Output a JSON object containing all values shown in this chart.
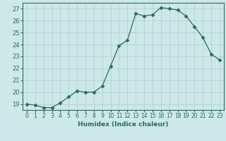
{
  "x": [
    0,
    1,
    2,
    3,
    4,
    5,
    6,
    7,
    8,
    9,
    10,
    11,
    12,
    13,
    14,
    15,
    16,
    17,
    18,
    19,
    20,
    21,
    22,
    23
  ],
  "y": [
    19.0,
    18.9,
    18.7,
    18.7,
    19.1,
    19.6,
    20.1,
    20.0,
    20.0,
    20.5,
    22.2,
    23.9,
    24.35,
    26.6,
    26.4,
    26.5,
    27.1,
    27.0,
    26.9,
    26.4,
    25.5,
    24.6,
    23.2,
    22.7
  ],
  "line_color": "#2a6b5e",
  "marker": "D",
  "marker_size": 2.5,
  "background_color": "#cde8e8",
  "grid_color": "#b0cccc",
  "xlabel": "Humidex (Indice chaleur)",
  "ylim": [
    18.5,
    27.5
  ],
  "xlim": [
    -0.5,
    23.5
  ],
  "yticks": [
    19,
    20,
    21,
    22,
    23,
    24,
    25,
    26,
    27
  ],
  "xticks": [
    0,
    1,
    2,
    3,
    4,
    5,
    6,
    7,
    8,
    9,
    10,
    11,
    12,
    13,
    14,
    15,
    16,
    17,
    18,
    19,
    20,
    21,
    22,
    23
  ],
  "tick_color": "#2a6b5e",
  "label_color": "#2a6b5e",
  "spine_color": "#2a6b5e"
}
